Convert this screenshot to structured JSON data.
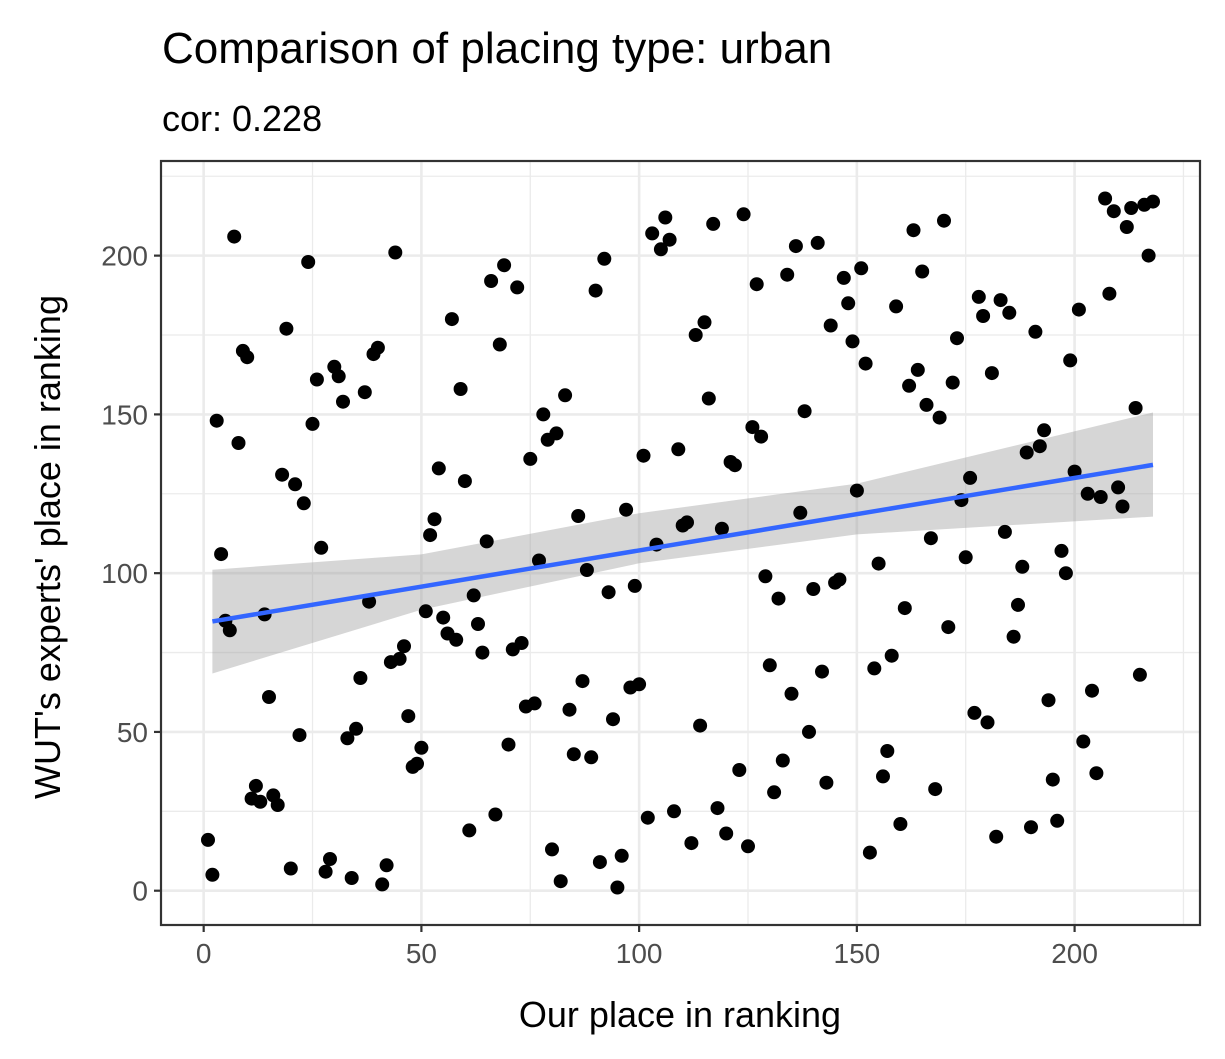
{
  "chart_data": {
    "type": "scatter",
    "title": "Comparison of placing type: urban",
    "subtitle": "cor: 0.228",
    "xlabel": "Our place in ranking",
    "ylabel": "WUT's experts' place in ranking",
    "xlim": [
      -9.8,
      228.8
    ],
    "ylim": [
      -10.8,
      229.8
    ],
    "x_ticks": [
      0,
      50,
      100,
      150,
      200
    ],
    "y_ticks": [
      0,
      50,
      100,
      150,
      200
    ],
    "x_tick_labels": [
      "0",
      "50",
      "100",
      "150",
      "200"
    ],
    "y_tick_labels": [
      "0",
      "50",
      "100",
      "150",
      "200"
    ],
    "grid": true,
    "point_color": "#000000",
    "trend_line": {
      "method": "linear",
      "color": "#3366ff",
      "x": [
        2,
        218
      ],
      "y": [
        84.8,
        134.1
      ],
      "ci_color": "#999999",
      "ci_x": [
        2,
        50,
        100,
        150,
        218
      ],
      "ci_lower": [
        68.4,
        88.5,
        103.1,
        112.2,
        117.8
      ],
      "ci_upper": [
        101.1,
        105.9,
        118.9,
        128.2,
        150.6
      ]
    },
    "points": [
      [
        1,
        16
      ],
      [
        2,
        5
      ],
      [
        3,
        148
      ],
      [
        4,
        106
      ],
      [
        5,
        85
      ],
      [
        6,
        82
      ],
      [
        7,
        206
      ],
      [
        8,
        141
      ],
      [
        9,
        170
      ],
      [
        10,
        168
      ],
      [
        11,
        29
      ],
      [
        12,
        33
      ],
      [
        13,
        28
      ],
      [
        14,
        87
      ],
      [
        15,
        61
      ],
      [
        16,
        30
      ],
      [
        17,
        27
      ],
      [
        18,
        131
      ],
      [
        19,
        177
      ],
      [
        20,
        7
      ],
      [
        21,
        128
      ],
      [
        22,
        49
      ],
      [
        23,
        122
      ],
      [
        24,
        198
      ],
      [
        25,
        147
      ],
      [
        26,
        161
      ],
      [
        27,
        108
      ],
      [
        28,
        6
      ],
      [
        29,
        10
      ],
      [
        30,
        165
      ],
      [
        31,
        162
      ],
      [
        32,
        154
      ],
      [
        33,
        48
      ],
      [
        34,
        4
      ],
      [
        35,
        51
      ],
      [
        36,
        67
      ],
      [
        37,
        157
      ],
      [
        38,
        91
      ],
      [
        39,
        169
      ],
      [
        40,
        171
      ],
      [
        41,
        2
      ],
      [
        42,
        8
      ],
      [
        43,
        72
      ],
      [
        44,
        201
      ],
      [
        45,
        73
      ],
      [
        46,
        77
      ],
      [
        47,
        55
      ],
      [
        48,
        39
      ],
      [
        49,
        40
      ],
      [
        50,
        45
      ],
      [
        51,
        88
      ],
      [
        52,
        112
      ],
      [
        53,
        117
      ],
      [
        54,
        133
      ],
      [
        55,
        86
      ],
      [
        56,
        81
      ],
      [
        57,
        180
      ],
      [
        58,
        79
      ],
      [
        59,
        158
      ],
      [
        60,
        129
      ],
      [
        61,
        19
      ],
      [
        62,
        93
      ],
      [
        63,
        84
      ],
      [
        64,
        75
      ],
      [
        65,
        110
      ],
      [
        66,
        192
      ],
      [
        67,
        24
      ],
      [
        68,
        172
      ],
      [
        69,
        197
      ],
      [
        70,
        46
      ],
      [
        71,
        76
      ],
      [
        72,
        190
      ],
      [
        73,
        78
      ],
      [
        74,
        58
      ],
      [
        75,
        136
      ],
      [
        76,
        59
      ],
      [
        77,
        104
      ],
      [
        78,
        150
      ],
      [
        79,
        142
      ],
      [
        80,
        13
      ],
      [
        81,
        144
      ],
      [
        82,
        3
      ],
      [
        83,
        156
      ],
      [
        84,
        57
      ],
      [
        85,
        43
      ],
      [
        86,
        118
      ],
      [
        87,
        66
      ],
      [
        88,
        101
      ],
      [
        89,
        42
      ],
      [
        90,
        189
      ],
      [
        91,
        9
      ],
      [
        92,
        199
      ],
      [
        93,
        94
      ],
      [
        94,
        54
      ],
      [
        95,
        1
      ],
      [
        96,
        11
      ],
      [
        97,
        120
      ],
      [
        98,
        64
      ],
      [
        99,
        96
      ],
      [
        100,
        65
      ],
      [
        101,
        137
      ],
      [
        102,
        23
      ],
      [
        103,
        207
      ],
      [
        104,
        109
      ],
      [
        105,
        202
      ],
      [
        106,
        212
      ],
      [
        107,
        205
      ],
      [
        108,
        25
      ],
      [
        109,
        139
      ],
      [
        110,
        115
      ],
      [
        111,
        116
      ],
      [
        112,
        15
      ],
      [
        113,
        175
      ],
      [
        114,
        52
      ],
      [
        115,
        179
      ],
      [
        116,
        155
      ],
      [
        117,
        210
      ],
      [
        118,
        26
      ],
      [
        119,
        114
      ],
      [
        120,
        18
      ],
      [
        121,
        135
      ],
      [
        122,
        134
      ],
      [
        123,
        38
      ],
      [
        124,
        213
      ],
      [
        125,
        14
      ],
      [
        126,
        146
      ],
      [
        127,
        191
      ],
      [
        128,
        143
      ],
      [
        129,
        99
      ],
      [
        130,
        71
      ],
      [
        131,
        31
      ],
      [
        132,
        92
      ],
      [
        133,
        41
      ],
      [
        134,
        194
      ],
      [
        135,
        62
      ],
      [
        136,
        203
      ],
      [
        137,
        119
      ],
      [
        138,
        151
      ],
      [
        139,
        50
      ],
      [
        140,
        95
      ],
      [
        141,
        204
      ],
      [
        142,
        69
      ],
      [
        143,
        34
      ],
      [
        144,
        178
      ],
      [
        145,
        97
      ],
      [
        146,
        98
      ],
      [
        147,
        193
      ],
      [
        148,
        185
      ],
      [
        149,
        173
      ],
      [
        150,
        126
      ],
      [
        151,
        196
      ],
      [
        152,
        166
      ],
      [
        153,
        12
      ],
      [
        154,
        70
      ],
      [
        155,
        103
      ],
      [
        156,
        36
      ],
      [
        157,
        44
      ],
      [
        158,
        74
      ],
      [
        159,
        184
      ],
      [
        160,
        21
      ],
      [
        161,
        89
      ],
      [
        162,
        159
      ],
      [
        163,
        208
      ],
      [
        164,
        164
      ],
      [
        165,
        195
      ],
      [
        166,
        153
      ],
      [
        167,
        111
      ],
      [
        168,
        32
      ],
      [
        169,
        149
      ],
      [
        170,
        211
      ],
      [
        171,
        83
      ],
      [
        172,
        160
      ],
      [
        173,
        174
      ],
      [
        174,
        123
      ],
      [
        175,
        105
      ],
      [
        176,
        130
      ],
      [
        177,
        56
      ],
      [
        178,
        187
      ],
      [
        179,
        181
      ],
      [
        180,
        53
      ],
      [
        181,
        163
      ],
      [
        182,
        17
      ],
      [
        183,
        186
      ],
      [
        184,
        113
      ],
      [
        185,
        182
      ],
      [
        186,
        80
      ],
      [
        187,
        90
      ],
      [
        188,
        102
      ],
      [
        189,
        138
      ],
      [
        190,
        20
      ],
      [
        191,
        176
      ],
      [
        192,
        140
      ],
      [
        193,
        145
      ],
      [
        194,
        60
      ],
      [
        195,
        35
      ],
      [
        196,
        22
      ],
      [
        197,
        107
      ],
      [
        198,
        100
      ],
      [
        199,
        167
      ],
      [
        200,
        132
      ],
      [
        201,
        183
      ],
      [
        202,
        47
      ],
      [
        203,
        125
      ],
      [
        204,
        63
      ],
      [
        205,
        37
      ],
      [
        206,
        124
      ],
      [
        207,
        218
      ],
      [
        208,
        188
      ],
      [
        209,
        214
      ],
      [
        210,
        127
      ],
      [
        211,
        121
      ],
      [
        212,
        209
      ],
      [
        213,
        215
      ],
      [
        214,
        152
      ],
      [
        215,
        68
      ],
      [
        216,
        216
      ],
      [
        217,
        200
      ],
      [
        218,
        217
      ]
    ]
  }
}
